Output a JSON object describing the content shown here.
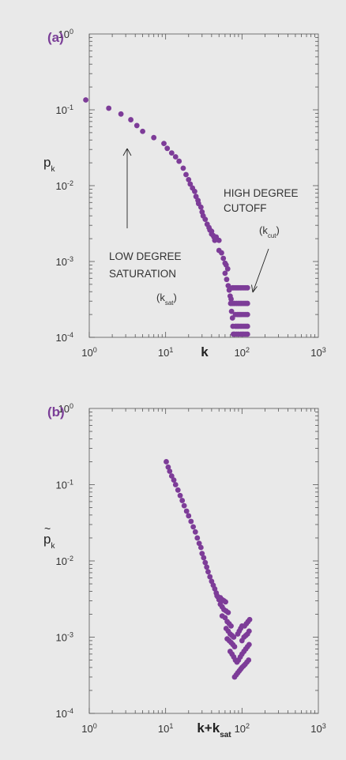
{
  "panels": [
    {
      "label": "(a)",
      "ylabel_main": "p",
      "ylabel_sub": "k",
      "ylabel_tilde": false,
      "xlabel_main": "k",
      "xlabel_sub": "",
      "annotations": [
        {
          "lines": [
            "HIGH DEGREE",
            "CUTOFF"
          ],
          "sym_main": "(k",
          "sym_sub": "cut",
          "sym_end": ")"
        },
        {
          "lines": [
            "LOW DEGREE",
            "SATURATION"
          ],
          "sym_main": "(k",
          "sym_sub": "sat",
          "sym_end": ")"
        }
      ]
    },
    {
      "label": "(b)",
      "ylabel_main": "p",
      "ylabel_sub": "k",
      "ylabel_tilde": true,
      "xlabel_main": "k+k",
      "xlabel_sub": "sat",
      "annotations": []
    }
  ],
  "chart_data": [
    {
      "type": "scatter",
      "title": "",
      "xlabel": "k",
      "ylabel": "p_k",
      "xscale": "log",
      "yscale": "log",
      "xlim": [
        1,
        1000
      ],
      "ylim": [
        0.0001,
        1
      ],
      "xticks": [
        "10^0",
        "10^1",
        "10^2",
        "10^3"
      ],
      "yticks": [
        "10^0",
        "10^-1",
        "10^-2",
        "10^-3",
        "10^-4"
      ],
      "color": "#7d3c98",
      "points": [
        [
          0.9,
          0.135
        ],
        [
          1.8,
          0.105
        ],
        [
          2.6,
          0.088
        ],
        [
          3.5,
          0.074
        ],
        [
          4.2,
          0.062
        ],
        [
          5.0,
          0.052
        ],
        [
          7.0,
          0.043
        ],
        [
          9.5,
          0.036
        ],
        [
          10.5,
          0.031
        ],
        [
          12,
          0.027
        ],
        [
          13.5,
          0.024
        ],
        [
          15,
          0.021
        ],
        [
          17,
          0.017
        ],
        [
          18.5,
          0.014
        ],
        [
          20,
          0.012
        ],
        [
          21,
          0.0105
        ],
        [
          22.5,
          0.0093
        ],
        [
          24,
          0.0084
        ],
        [
          25,
          0.0072
        ],
        [
          26.5,
          0.0064
        ],
        [
          27,
          0.0058
        ],
        [
          29,
          0.0052
        ],
        [
          30,
          0.0045
        ],
        [
          31,
          0.004
        ],
        [
          33,
          0.0036
        ],
        [
          35,
          0.0031
        ],
        [
          37,
          0.0028
        ],
        [
          40,
          0.0025
        ],
        [
          42,
          0.0022
        ],
        [
          44,
          0.0019
        ],
        [
          38,
          0.0026
        ],
        [
          40,
          0.0023
        ],
        [
          43,
          0.0021
        ],
        [
          46,
          0.0021
        ],
        [
          50,
          0.0019
        ],
        [
          50,
          0.0014
        ],
        [
          54,
          0.0013
        ],
        [
          57,
          0.0011
        ],
        [
          60,
          0.00095
        ],
        [
          62,
          0.0009
        ],
        [
          65,
          0.0008
        ],
        [
          60,
          0.0007
        ],
        [
          63,
          0.00058
        ],
        [
          66,
          0.00048
        ],
        [
          68,
          0.00042
        ],
        [
          70,
          0.00035
        ],
        [
          72,
          0.00032
        ],
        [
          71,
          0.00028
        ],
        [
          73,
          0.00022
        ],
        [
          75,
          0.00018
        ],
        [
          76,
          0.00014
        ],
        [
          77,
          0.00011
        ],
        [
          72,
          0.00028
        ],
        [
          76,
          0.00028
        ],
        [
          80,
          0.00028
        ],
        [
          85,
          0.00028
        ],
        [
          90,
          0.00028
        ],
        [
          82,
          0.0002
        ],
        [
          87,
          0.0002
        ],
        [
          91,
          0.0002
        ],
        [
          82,
          0.00014
        ],
        [
          86,
          0.00014
        ],
        [
          90,
          0.00014
        ],
        [
          80,
          0.00011
        ],
        [
          85,
          0.00011
        ],
        [
          90,
          0.00011
        ],
        [
          96,
          0.00011
        ],
        [
          101,
          0.00011
        ],
        [
          106,
          0.00011
        ],
        [
          112,
          0.00011
        ],
        [
          118,
          0.00011
        ],
        [
          95,
          0.00028
        ],
        [
          100,
          0.00028
        ],
        [
          106,
          0.00028
        ],
        [
          112,
          0.00028
        ],
        [
          118,
          0.00028
        ],
        [
          95,
          0.0002
        ],
        [
          100,
          0.0002
        ],
        [
          106,
          0.0002
        ],
        [
          112,
          0.0002
        ],
        [
          118,
          0.0002
        ],
        [
          95,
          0.00014
        ],
        [
          100,
          0.00014
        ],
        [
          106,
          0.00014
        ],
        [
          112,
          0.00014
        ],
        [
          118,
          0.00014
        ],
        [
          86,
          0.00045
        ],
        [
          90,
          0.00045
        ],
        [
          95,
          0.00045
        ],
        [
          100,
          0.00045
        ],
        [
          106,
          0.00045
        ],
        [
          112,
          0.00045
        ],
        [
          118,
          0.00045
        ],
        [
          75,
          0.00045
        ],
        [
          78,
          0.00045
        ],
        [
          82,
          0.00045
        ]
      ]
    },
    {
      "type": "scatter",
      "title": "",
      "xlabel": "k+k_sat",
      "ylabel": "p~_k",
      "xscale": "log",
      "yscale": "log",
      "xlim": [
        1,
        1000
      ],
      "ylim": [
        0.0001,
        1
      ],
      "xticks": [
        "10^0",
        "10^1",
        "10^2",
        "10^3"
      ],
      "yticks": [
        "10^0",
        "10^-1",
        "10^-2",
        "10^-3",
        "10^-4"
      ],
      "color": "#7d3c98",
      "points": [
        [
          10.2,
          0.2
        ],
        [
          10.8,
          0.17
        ],
        [
          11.3,
          0.15
        ],
        [
          12,
          0.13
        ],
        [
          12.8,
          0.115
        ],
        [
          13.5,
          0.1
        ],
        [
          14.5,
          0.085
        ],
        [
          15.5,
          0.072
        ],
        [
          16.5,
          0.062
        ],
        [
          17.5,
          0.053
        ],
        [
          18.8,
          0.045
        ],
        [
          20,
          0.039
        ],
        [
          21.5,
          0.033
        ],
        [
          23,
          0.028
        ],
        [
          24.5,
          0.024
        ],
        [
          26,
          0.02
        ],
        [
          27.5,
          0.017
        ],
        [
          29,
          0.015
        ],
        [
          30,
          0.0125
        ],
        [
          31.5,
          0.011
        ],
        [
          33,
          0.0095
        ],
        [
          34.5,
          0.0083
        ],
        [
          36,
          0.0072
        ],
        [
          38,
          0.0062
        ],
        [
          40,
          0.0054
        ],
        [
          42,
          0.0048
        ],
        [
          44,
          0.0043
        ],
        [
          46,
          0.0038
        ],
        [
          48,
          0.0034
        ],
        [
          50,
          0.0031
        ],
        [
          47,
          0.0035
        ],
        [
          52,
          0.0033
        ],
        [
          55,
          0.0031
        ],
        [
          58,
          0.003
        ],
        [
          61,
          0.0029
        ],
        [
          52,
          0.0027
        ],
        [
          55,
          0.0025
        ],
        [
          58,
          0.0023
        ],
        [
          62,
          0.0022
        ],
        [
          66,
          0.0021
        ],
        [
          55,
          0.0019
        ],
        [
          60,
          0.0018
        ],
        [
          64,
          0.0016
        ],
        [
          68,
          0.0015
        ],
        [
          72,
          0.0014
        ],
        [
          62,
          0.0013
        ],
        [
          66,
          0.0012
        ],
        [
          70,
          0.0011
        ],
        [
          74,
          0.00105
        ],
        [
          78,
          0.001
        ],
        [
          64,
          0.00095
        ],
        [
          68,
          0.0009
        ],
        [
          72,
          0.00085
        ],
        [
          76,
          0.0008
        ],
        [
          80,
          0.00075
        ],
        [
          70,
          0.00065
        ],
        [
          74,
          0.0006
        ],
        [
          78,
          0.00055
        ],
        [
          82,
          0.0005
        ],
        [
          86,
          0.00047
        ],
        [
          80,
          0.0003
        ],
        [
          84,
          0.00032
        ],
        [
          88,
          0.00034
        ],
        [
          92,
          0.00036
        ],
        [
          96,
          0.00038
        ],
        [
          100,
          0.0004
        ],
        [
          105,
          0.00042
        ],
        [
          110,
          0.00044
        ],
        [
          116,
          0.00047
        ],
        [
          122,
          0.0005
        ],
        [
          90,
          0.0005
        ],
        [
          95,
          0.00055
        ],
        [
          100,
          0.0006
        ],
        [
          106,
          0.00065
        ],
        [
          112,
          0.0007
        ],
        [
          118,
          0.00075
        ],
        [
          124,
          0.0008
        ],
        [
          100,
          0.0009
        ],
        [
          106,
          0.001
        ],
        [
          112,
          0.00105
        ],
        [
          118,
          0.0011
        ],
        [
          124,
          0.0012
        ],
        [
          108,
          0.0014
        ],
        [
          114,
          0.0015
        ],
        [
          120,
          0.0016
        ],
        [
          126,
          0.0017
        ],
        [
          88,
          0.0011
        ],
        [
          92,
          0.0012
        ],
        [
          96,
          0.0013
        ],
        [
          100,
          0.0014
        ]
      ]
    }
  ]
}
